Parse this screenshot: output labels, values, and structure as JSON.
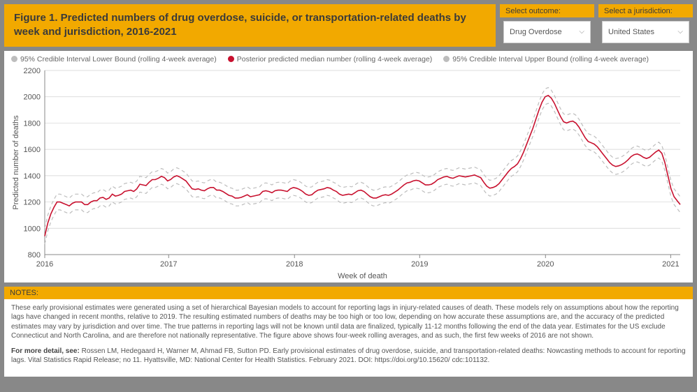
{
  "header": {
    "title": "Figure 1. Predicted numbers of drug overdose, suicide, or transportation-related deaths by week and jurisdiction, 2016-2021"
  },
  "selectors": {
    "outcome": {
      "label": "Select outcome:",
      "value": "Drug Overdose"
    },
    "jurisdiction": {
      "label": "Select a jurisdiction:",
      "value": "United States"
    }
  },
  "legend": {
    "lower": "95% Credible Interval Lower Bound (rolling 4-week average)",
    "median": "Posterior predicted median number (rolling 4-week average)",
    "upper": "95% Credible Interval Upper Bound (rolling 4-week average)"
  },
  "chart": {
    "type": "line",
    "x_label": "Week of death",
    "y_label": "Predicted number of deaths",
    "x_ticks": [
      "2016",
      "2017",
      "2018",
      "2019",
      "2020",
      "2021"
    ],
    "x_tick_positions": [
      0.0,
      0.195,
      0.393,
      0.59,
      0.788,
      0.985
    ],
    "ylim": [
      800,
      2200
    ],
    "ytick_step": 200,
    "background_color": "#ffffff",
    "grid_color": "#d0d0d0",
    "line_color_median": "#c8102e",
    "line_color_bounds": "#bdbdbd",
    "bounds_dash": "5,4",
    "line_width_median": 1.6,
    "line_width_bounds": 1.2,
    "label_fontsize": 11,
    "band_offset": 60,
    "median": [
      940,
      1040,
      1110,
      1160,
      1200,
      1200,
      1190,
      1180,
      1170,
      1190,
      1200,
      1200,
      1200,
      1180,
      1180,
      1200,
      1210,
      1210,
      1230,
      1235,
      1220,
      1230,
      1260,
      1245,
      1250,
      1260,
      1280,
      1285,
      1290,
      1280,
      1300,
      1335,
      1330,
      1325,
      1350,
      1370,
      1370,
      1380,
      1395,
      1385,
      1360,
      1370,
      1390,
      1400,
      1390,
      1375,
      1360,
      1330,
      1300,
      1295,
      1300,
      1290,
      1285,
      1300,
      1310,
      1310,
      1290,
      1290,
      1280,
      1265,
      1250,
      1245,
      1230,
      1230,
      1235,
      1245,
      1255,
      1240,
      1245,
      1250,
      1255,
      1280,
      1285,
      1280,
      1270,
      1285,
      1290,
      1290,
      1285,
      1280,
      1300,
      1310,
      1305,
      1295,
      1280,
      1260,
      1250,
      1255,
      1275,
      1290,
      1295,
      1300,
      1310,
      1305,
      1290,
      1280,
      1260,
      1250,
      1255,
      1260,
      1255,
      1270,
      1285,
      1290,
      1280,
      1260,
      1240,
      1230,
      1230,
      1240,
      1250,
      1255,
      1250,
      1260,
      1275,
      1290,
      1310,
      1330,
      1345,
      1350,
      1360,
      1365,
      1360,
      1345,
      1330,
      1330,
      1335,
      1350,
      1370,
      1380,
      1390,
      1395,
      1385,
      1380,
      1390,
      1400,
      1395,
      1390,
      1395,
      1400,
      1405,
      1395,
      1385,
      1350,
      1320,
      1305,
      1310,
      1320,
      1340,
      1370,
      1400,
      1430,
      1455,
      1470,
      1490,
      1530,
      1580,
      1640,
      1700,
      1760,
      1830,
      1900,
      1960,
      2000,
      2010,
      1990,
      1950,
      1900,
      1850,
      1810,
      1800,
      1810,
      1815,
      1800,
      1770,
      1730,
      1690,
      1660,
      1650,
      1640,
      1620,
      1590,
      1560,
      1530,
      1500,
      1480,
      1470,
      1475,
      1485,
      1500,
      1520,
      1545,
      1560,
      1565,
      1555,
      1540,
      1530,
      1540,
      1560,
      1580,
      1595,
      1570,
      1500,
      1400,
      1300,
      1240,
      1210,
      1180
    ]
  },
  "notes": {
    "header": "NOTES:",
    "p1": "These early provisional estimates were generated using a set of hierarchical Bayesian models to account for reporting lags in injury-related causes of death. These models rely on assumptions about how the reporting lags have changed in recent months, relative to 2019. The resulting estimated numbers of deaths may be too high or too low, depending on how accurate these assumptions are, and the accuracy of the predicted estimates may vary by jurisdiction and over time. The true patterns in reporting lags will not be known until data are finalized, typically 11-12 months following the end of the data year. Estimates for the US exclude Connecticut and North Carolina, and are therefore not nationally representative.  The figure above shows four-week rolling averages, and as such, the first few weeks of 2016 are not shown.",
    "p2_label": "For more detail, see:",
    "p2_text": " Rossen LM, Hedegaard H, Warner M, Ahmad FB, Sutton PD. Early provisional estimates of drug overdose, suicide, and transportation-related deaths: Nowcasting methods to account for reporting lags. Vital Statistics Rapid Release; no 11. Hyattsville, MD: National Center for Health Statistics. February 2021. DOI: https://doi.org/10.15620/ cdc:101132."
  }
}
